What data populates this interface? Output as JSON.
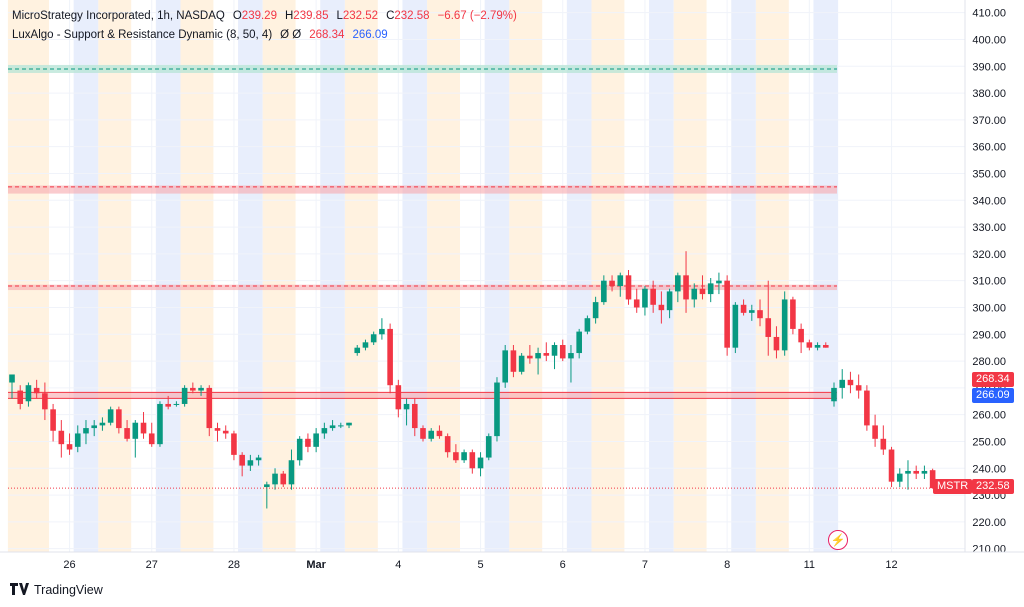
{
  "header": {
    "symbol_title": "MicroStrategy Incorporated, 1h, NASDAQ",
    "open_label": "O",
    "open": "239.29",
    "high_label": "H",
    "high": "239.85",
    "low_label": "L",
    "low": "232.52",
    "close_label": "C",
    "close": "232.58",
    "change": "−6.67 (−2.79%)",
    "indicator_title": "LuxAlgo - Support & Resistance Dynamic (8, 50, 4)",
    "indicator_flags": "Ø Ø",
    "indicator_value_1": "268.34",
    "indicator_value_2": "266.09"
  },
  "price_badges": {
    "resistance_label": "268.34",
    "support_label": "266.09",
    "ticker": "MSTR",
    "last_price": "232.58"
  },
  "footer": {
    "brand": "TradingView"
  },
  "colors": {
    "up": "#089981",
    "down": "#f23645",
    "zone_red": "#f7a9ae",
    "zone_green": "#b7e4d6",
    "session_blue": "#e8eefc",
    "session_orange": "#fff2e0",
    "badge_red": "#f23645",
    "badge_blue": "#2962ff"
  },
  "chart_data": {
    "type": "candlestick",
    "symbol": "MSTR",
    "timeframe": "1h",
    "y_axis": {
      "range": [
        205,
        411
      ],
      "ticks": [
        "210.00",
        "220.00",
        "230.00",
        "240.00",
        "250.00",
        "260.00",
        "270.00",
        "280.00",
        "290.00",
        "300.00",
        "310.00",
        "320.00",
        "330.00",
        "340.00",
        "350.00",
        "360.00",
        "370.00",
        "380.00",
        "390.00",
        "400.00",
        "410.00"
      ]
    },
    "x_axis": {
      "ticks": [
        {
          "label": "26",
          "bar": 7
        },
        {
          "label": "27",
          "bar": 17
        },
        {
          "label": "28",
          "bar": 27
        },
        {
          "label": "Mar",
          "bar": 37
        },
        {
          "label": "4",
          "bar": 47
        },
        {
          "label": "5",
          "bar": 57
        },
        {
          "label": "6",
          "bar": 67
        },
        {
          "label": "7",
          "bar": 77
        },
        {
          "label": "8",
          "bar": 87
        },
        {
          "label": "11",
          "bar": 97
        },
        {
          "label": "12",
          "bar": 107
        }
      ]
    },
    "sessions": [
      {
        "type": "orange",
        "from": 0,
        "to": 4
      },
      {
        "type": "blue",
        "from": 8,
        "to": 10
      },
      {
        "type": "orange",
        "from": 11,
        "to": 14
      },
      {
        "type": "blue",
        "from": 18,
        "to": 20
      },
      {
        "type": "orange",
        "from": 21,
        "to": 24
      },
      {
        "type": "blue",
        "from": 28,
        "to": 30
      },
      {
        "type": "orange",
        "from": 31,
        "to": 34
      },
      {
        "type": "blue",
        "from": 38,
        "to": 40
      },
      {
        "type": "orange",
        "from": 41,
        "to": 44
      },
      {
        "type": "blue",
        "from": 48,
        "to": 50
      },
      {
        "type": "orange",
        "from": 51,
        "to": 54
      },
      {
        "type": "blue",
        "from": 58,
        "to": 60
      },
      {
        "type": "orange",
        "from": 61,
        "to": 64
      },
      {
        "type": "blue",
        "from": 68,
        "to": 70
      },
      {
        "type": "orange",
        "from": 71,
        "to": 74
      },
      {
        "type": "blue",
        "from": 78,
        "to": 80
      },
      {
        "type": "orange",
        "from": 81,
        "to": 84
      },
      {
        "type": "blue",
        "from": 88,
        "to": 90
      },
      {
        "type": "orange",
        "from": 91,
        "to": 94
      },
      {
        "type": "blue",
        "from": 98,
        "to": 100
      }
    ],
    "zones": [
      {
        "kind": "resistance",
        "color": "green",
        "top": 390.5,
        "bottom": 387.5,
        "dash": 389.0
      },
      {
        "kind": "resistance",
        "color": "red",
        "top": 345.5,
        "bottom": 342.5,
        "dash": 345.0
      },
      {
        "kind": "resistance",
        "color": "red",
        "top": 308.5,
        "bottom": 306.5,
        "dash": 308.0
      },
      {
        "kind": "support",
        "color": "red",
        "top": 268.34,
        "bottom": 266.09,
        "dash": null
      }
    ],
    "last_price_line": 232.58,
    "candles": [
      {
        "o": 272,
        "h": 275,
        "l": 266,
        "c": 275
      },
      {
        "o": 269,
        "h": 271,
        "l": 262,
        "c": 264
      },
      {
        "o": 265,
        "h": 272,
        "l": 263,
        "c": 271
      },
      {
        "o": 270,
        "h": 273,
        "l": 266,
        "c": 268
      },
      {
        "o": 268,
        "h": 272,
        "l": 258,
        "c": 262
      },
      {
        "o": 262,
        "h": 264,
        "l": 250,
        "c": 254
      },
      {
        "o": 254,
        "h": 258,
        "l": 244,
        "c": 249
      },
      {
        "o": 249,
        "h": 253,
        "l": 245,
        "c": 247
      },
      {
        "o": 248,
        "h": 256,
        "l": 246,
        "c": 253
      },
      {
        "o": 253,
        "h": 258,
        "l": 249,
        "c": 255
      },
      {
        "o": 255,
        "h": 258,
        "l": 252,
        "c": 256
      },
      {
        "o": 256,
        "h": 259,
        "l": 254,
        "c": 257
      },
      {
        "o": 257,
        "h": 263,
        "l": 256,
        "c": 262
      },
      {
        "o": 262,
        "h": 263,
        "l": 253,
        "c": 255
      },
      {
        "o": 255,
        "h": 258,
        "l": 250,
        "c": 251
      },
      {
        "o": 251,
        "h": 258,
        "l": 244,
        "c": 257
      },
      {
        "o": 257,
        "h": 261,
        "l": 251,
        "c": 253
      },
      {
        "o": 253,
        "h": 257,
        "l": 248,
        "c": 249
      },
      {
        "o": 249,
        "h": 265,
        "l": 248,
        "c": 264
      },
      {
        "o": 264,
        "h": 267,
        "l": 262,
        "c": 263
      },
      {
        "o": 264,
        "h": 265,
        "l": 263,
        "c": 264
      },
      {
        "o": 264,
        "h": 271,
        "l": 263,
        "c": 270
      },
      {
        "o": 270,
        "h": 272,
        "l": 268,
        "c": 269
      },
      {
        "o": 269,
        "h": 271,
        "l": 267,
        "c": 270
      },
      {
        "o": 270,
        "h": 271,
        "l": 252,
        "c": 255
      },
      {
        "o": 255,
        "h": 257,
        "l": 250,
        "c": 254
      },
      {
        "o": 254,
        "h": 256,
        "l": 251,
        "c": 253
      },
      {
        "o": 253,
        "h": 254,
        "l": 243,
        "c": 245
      },
      {
        "o": 245,
        "h": 246,
        "l": 237,
        "c": 241
      },
      {
        "o": 241,
        "h": 245,
        "l": 239,
        "c": 243
      },
      {
        "o": 243,
        "h": 245,
        "l": 241,
        "c": 244
      },
      {
        "o": 233,
        "h": 235,
        "l": 225,
        "c": 234
      },
      {
        "o": 234,
        "h": 240,
        "l": 232,
        "c": 238
      },
      {
        "o": 238,
        "h": 239,
        "l": 233,
        "c": 234
      },
      {
        "o": 234,
        "h": 247,
        "l": 232,
        "c": 243
      },
      {
        "o": 243,
        "h": 252,
        "l": 241,
        "c": 251
      },
      {
        "o": 251,
        "h": 253,
        "l": 246,
        "c": 248
      },
      {
        "o": 248,
        "h": 255,
        "l": 246,
        "c": 253
      },
      {
        "o": 253,
        "h": 257,
        "l": 251,
        "c": 255
      },
      {
        "o": 255,
        "h": 258,
        "l": 254,
        "c": 256
      },
      {
        "o": 256,
        "h": 257,
        "l": 255,
        "c": 256
      },
      {
        "o": 256,
        "h": 257,
        "l": 255,
        "c": 257
      },
      {
        "o": 283,
        "h": 286,
        "l": 282,
        "c": 285
      },
      {
        "o": 285,
        "h": 288,
        "l": 284,
        "c": 287
      },
      {
        "o": 287,
        "h": 291,
        "l": 286,
        "c": 290
      },
      {
        "o": 290,
        "h": 296,
        "l": 288,
        "c": 292
      },
      {
        "o": 292,
        "h": 294,
        "l": 268,
        "c": 271
      },
      {
        "o": 271,
        "h": 273,
        "l": 259,
        "c": 262
      },
      {
        "o": 262,
        "h": 266,
        "l": 256,
        "c": 264
      },
      {
        "o": 264,
        "h": 266,
        "l": 252,
        "c": 255
      },
      {
        "o": 255,
        "h": 256,
        "l": 250,
        "c": 251
      },
      {
        "o": 251,
        "h": 255,
        "l": 250,
        "c": 254
      },
      {
        "o": 254,
        "h": 256,
        "l": 251,
        "c": 252
      },
      {
        "o": 252,
        "h": 253,
        "l": 244,
        "c": 246
      },
      {
        "o": 246,
        "h": 249,
        "l": 242,
        "c": 243
      },
      {
        "o": 243,
        "h": 247,
        "l": 242,
        "c": 246
      },
      {
        "o": 246,
        "h": 247,
        "l": 238,
        "c": 240
      },
      {
        "o": 240,
        "h": 246,
        "l": 237,
        "c": 244
      },
      {
        "o": 244,
        "h": 253,
        "l": 243,
        "c": 252
      },
      {
        "o": 252,
        "h": 274,
        "l": 250,
        "c": 272
      },
      {
        "o": 272,
        "h": 286,
        "l": 270,
        "c": 284
      },
      {
        "o": 284,
        "h": 286,
        "l": 274,
        "c": 276
      },
      {
        "o": 276,
        "h": 283,
        "l": 275,
        "c": 282
      },
      {
        "o": 282,
        "h": 286,
        "l": 279,
        "c": 281
      },
      {
        "o": 281,
        "h": 285,
        "l": 275,
        "c": 283
      },
      {
        "o": 283,
        "h": 287,
        "l": 280,
        "c": 282
      },
      {
        "o": 282,
        "h": 287,
        "l": 277,
        "c": 286
      },
      {
        "o": 286,
        "h": 288,
        "l": 280,
        "c": 281
      },
      {
        "o": 281,
        "h": 286,
        "l": 272,
        "c": 283
      },
      {
        "o": 283,
        "h": 292,
        "l": 281,
        "c": 291
      },
      {
        "o": 291,
        "h": 297,
        "l": 290,
        "c": 296
      },
      {
        "o": 296,
        "h": 304,
        "l": 294,
        "c": 302
      },
      {
        "o": 302,
        "h": 312,
        "l": 301,
        "c": 310
      },
      {
        "o": 310,
        "h": 312,
        "l": 306,
        "c": 308
      },
      {
        "o": 308,
        "h": 313,
        "l": 304,
        "c": 312
      },
      {
        "o": 312,
        "h": 314,
        "l": 301,
        "c": 303
      },
      {
        "o": 303,
        "h": 307,
        "l": 298,
        "c": 300
      },
      {
        "o": 300,
        "h": 308,
        "l": 297,
        "c": 307
      },
      {
        "o": 307,
        "h": 310,
        "l": 298,
        "c": 301
      },
      {
        "o": 301,
        "h": 306,
        "l": 294,
        "c": 299
      },
      {
        "o": 299,
        "h": 307,
        "l": 296,
        "c": 306
      },
      {
        "o": 306,
        "h": 313,
        "l": 302,
        "c": 312
      },
      {
        "o": 312,
        "h": 321,
        "l": 298,
        "c": 303
      },
      {
        "o": 303,
        "h": 309,
        "l": 300,
        "c": 307
      },
      {
        "o": 307,
        "h": 312,
        "l": 303,
        "c": 305
      },
      {
        "o": 305,
        "h": 311,
        "l": 302,
        "c": 309
      },
      {
        "o": 309,
        "h": 313,
        "l": 305,
        "c": 310
      },
      {
        "o": 310,
        "h": 312,
        "l": 282,
        "c": 285
      },
      {
        "o": 285,
        "h": 302,
        "l": 283,
        "c": 301
      },
      {
        "o": 301,
        "h": 303,
        "l": 297,
        "c": 298
      },
      {
        "o": 298,
        "h": 301,
        "l": 295,
        "c": 299
      },
      {
        "o": 299,
        "h": 303,
        "l": 293,
        "c": 296
      },
      {
        "o": 296,
        "h": 310,
        "l": 282,
        "c": 289
      },
      {
        "o": 289,
        "h": 293,
        "l": 281,
        "c": 284
      },
      {
        "o": 284,
        "h": 306,
        "l": 282,
        "c": 303
      },
      {
        "o": 303,
        "h": 304,
        "l": 290,
        "c": 292
      },
      {
        "o": 292,
        "h": 294,
        "l": 283,
        "c": 287
      },
      {
        "o": 287,
        "h": 288,
        "l": 284,
        "c": 285
      },
      {
        "o": 285,
        "h": 287,
        "l": 284,
        "c": 286
      },
      {
        "o": 286,
        "h": 287,
        "l": 285,
        "c": 285
      },
      {
        "o": 265,
        "h": 272,
        "l": 263,
        "c": 270
      },
      {
        "o": 270,
        "h": 277,
        "l": 266,
        "c": 273
      },
      {
        "o": 273,
        "h": 276,
        "l": 268,
        "c": 271
      },
      {
        "o": 271,
        "h": 275,
        "l": 266,
        "c": 269
      },
      {
        "o": 269,
        "h": 271,
        "l": 254,
        "c": 256
      },
      {
        "o": 256,
        "h": 260,
        "l": 248,
        "c": 251
      },
      {
        "o": 251,
        "h": 256,
        "l": 245,
        "c": 247
      },
      {
        "o": 247,
        "h": 248,
        "l": 233,
        "c": 235
      },
      {
        "o": 235,
        "h": 240,
        "l": 233,
        "c": 238
      },
      {
        "o": 238,
        "h": 243,
        "l": 232,
        "c": 239
      },
      {
        "o": 239,
        "h": 241,
        "l": 236,
        "c": 238
      },
      {
        "o": 238,
        "h": 241,
        "l": 236,
        "c": 239
      },
      {
        "o": 239.29,
        "h": 239.85,
        "l": 232.52,
        "c": 232.58
      }
    ]
  }
}
